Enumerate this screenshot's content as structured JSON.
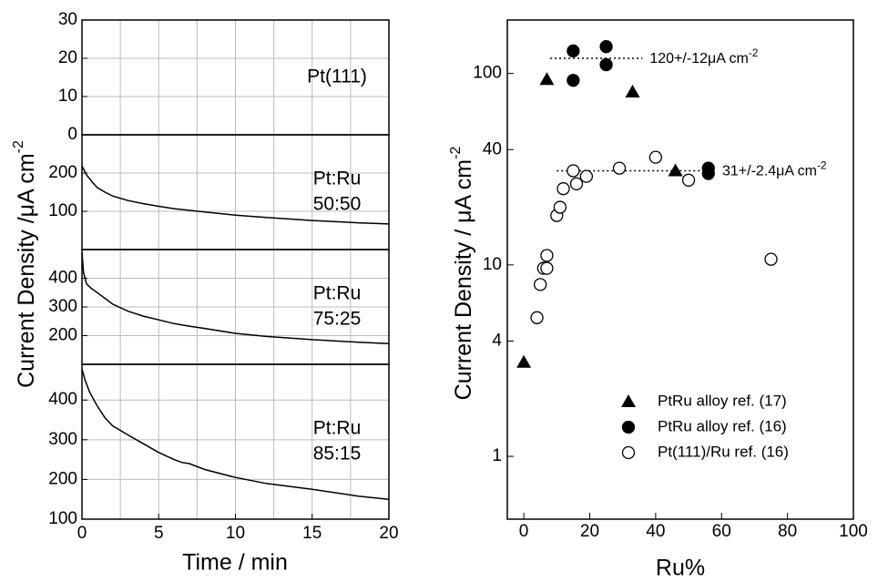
{
  "chart_data": [
    {
      "type": "line",
      "xlabel": "Time / min",
      "ylabel": "Current Density /μA cm",
      "ylabel_sup": "-2",
      "xlim": [
        0,
        20
      ],
      "xticks": [
        0,
        5,
        10,
        15,
        20
      ],
      "grid": true,
      "color": "#000000",
      "panels": [
        {
          "label": [
            "Pt(111)"
          ],
          "ylim": [
            0,
            30
          ],
          "yticks": [
            0,
            10,
            20,
            30
          ],
          "x": [],
          "values": []
        },
        {
          "label": [
            "Pt:Ru",
            "50:50"
          ],
          "ylim": [
            0,
            300
          ],
          "yticks": [
            100,
            200
          ],
          "x": [
            0,
            0.3,
            0.7,
            1,
            1.5,
            2,
            3,
            4,
            5,
            6,
            8,
            10,
            12,
            15,
            18,
            20
          ],
          "values": [
            218,
            195,
            175,
            162,
            150,
            140,
            128,
            120,
            113,
            107,
            98,
            90,
            84,
            76,
            70,
            67
          ]
        },
        {
          "label": [
            "Pt:Ru",
            "75:25"
          ],
          "ylim": [
            100,
            500
          ],
          "yticks": [
            200,
            300,
            400
          ],
          "x": [
            0,
            0.1,
            0.3,
            0.6,
            1,
            1.5,
            2,
            3,
            4,
            5,
            6,
            7,
            8,
            10,
            12,
            15,
            18,
            20
          ],
          "values": [
            490,
            420,
            380,
            365,
            350,
            330,
            310,
            285,
            268,
            255,
            242,
            233,
            225,
            208,
            197,
            186,
            177,
            172
          ]
        },
        {
          "label": [
            "Pt:Ru",
            "85:15"
          ],
          "ylim": [
            100,
            490
          ],
          "yticks": [
            100,
            200,
            300,
            400
          ],
          "x": [
            0,
            0.2,
            0.5,
            1,
            1.5,
            2,
            3,
            4,
            5,
            6,
            6.5,
            7,
            8,
            10,
            12,
            15,
            18,
            20
          ],
          "values": [
            478,
            450,
            420,
            385,
            355,
            335,
            312,
            290,
            268,
            250,
            243,
            240,
            225,
            205,
            190,
            175,
            158,
            150
          ]
        }
      ]
    },
    {
      "type": "scatter",
      "xlabel": "Ru%",
      "ylabel": "Current Density / μA cm",
      "ylabel_sup": "-2",
      "xlim": [
        -5,
        100
      ],
      "xticks": [
        0,
        20,
        40,
        60,
        80,
        100
      ],
      "ylim": [
        0.47,
        190
      ],
      "yticks": [
        1,
        4,
        10,
        40,
        100
      ],
      "log_y": true,
      "legend": "lower right",
      "series": [
        {
          "name": "PtRu alloy ref. (17)",
          "marker": "triangle",
          "color": "#000000",
          "x": [
            0,
            7,
            33,
            46
          ],
          "values": [
            3.1,
            93,
            80,
            31
          ]
        },
        {
          "name": "PtRu alloy ref. (16)",
          "marker": "filled-circle",
          "color": "#000000",
          "x": [
            15,
            15,
            25,
            25,
            56,
            56
          ],
          "values": [
            131,
            92,
            138,
            111,
            32,
            30
          ]
        },
        {
          "name": "Pt(111)/Ru ref. (16)",
          "marker": "open-circle",
          "color": "#000000",
          "x": [
            4,
            5,
            6,
            7,
            7,
            10,
            11,
            12,
            15,
            16,
            19,
            29,
            40,
            50,
            75
          ],
          "values": [
            5.3,
            7.9,
            9.6,
            9.6,
            11.2,
            18.1,
            20,
            25,
            31,
            26.5,
            29,
            32,
            36.5,
            27.7,
            10.7
          ]
        }
      ],
      "hlines": [
        {
          "value": 120,
          "x": [
            8,
            36
          ],
          "label": "120+/-12μA cm",
          "label_sup": "-2"
        },
        {
          "value": 31,
          "x": [
            10,
            58
          ],
          "label": "31+/-2.4μA cm",
          "label_sup": "-2"
        }
      ]
    }
  ]
}
